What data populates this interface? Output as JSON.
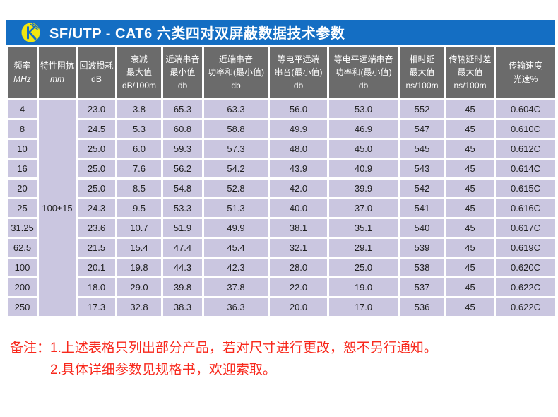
{
  "header": {
    "title": "SF/UTP - CAT6 六类四对双屏蔽数据技术参数",
    "logo_icon": "brand-logo"
  },
  "colors": {
    "titlebar_blue": "#146ec3",
    "logo_yellow": "#f0e611",
    "header_gray": "#6b6b6b",
    "row_lavender": "#cac6e0",
    "grid_white": "#ffffff",
    "note_red": "#f8281c"
  },
  "table": {
    "columns": [
      {
        "l1": "频率",
        "l2": "MHz"
      },
      {
        "l1": "特性阻抗",
        "l2": "mm"
      },
      {
        "l1": "回波损耗",
        "l2": "dB"
      },
      {
        "l1": "衰减",
        "l2": "最大值",
        "l3": "dB/100m"
      },
      {
        "l1": "近端串音",
        "l2": "最小值",
        "l3": "db"
      },
      {
        "l1": "近端串音",
        "l2": "功率和(最小值)",
        "l3": "db"
      },
      {
        "l1": "等电平远端",
        "l2": "串音(最小值)",
        "l3": "db"
      },
      {
        "l1": "等电平远端串音",
        "l2": "功率和(最小值)",
        "l3": "db"
      },
      {
        "l1": "相时延",
        "l2": "最大值",
        "l3": "ns/100m"
      },
      {
        "l1": "传输延时差",
        "l2": "最大值",
        "l3": "ns/100m"
      },
      {
        "l1": "传输速度",
        "l2": "光速%"
      }
    ],
    "impedance": "100±15",
    "rows": [
      {
        "freq": "4",
        "values": [
          "23.0",
          "3.8",
          "65.3",
          "63.3",
          "56.0",
          "53.0",
          "552",
          "45",
          "0.604C"
        ]
      },
      {
        "freq": "8",
        "values": [
          "24.5",
          "5.3",
          "60.8",
          "58.8",
          "49.9",
          "46.9",
          "547",
          "45",
          "0.610C"
        ]
      },
      {
        "freq": "10",
        "values": [
          "25.0",
          "6.0",
          "59.3",
          "57.3",
          "48.0",
          "45.0",
          "545",
          "45",
          "0.612C"
        ]
      },
      {
        "freq": "16",
        "values": [
          "25.0",
          "7.6",
          "56.2",
          "54.2",
          "43.9",
          "40.9",
          "543",
          "45",
          "0.614C"
        ]
      },
      {
        "freq": "20",
        "values": [
          "25.0",
          "8.5",
          "54.8",
          "52.8",
          "42.0",
          "39.9",
          "542",
          "45",
          "0.615C"
        ]
      },
      {
        "freq": "25",
        "values": [
          "24.3",
          "9.5",
          "53.3",
          "51.3",
          "40.0",
          "37.0",
          "541",
          "45",
          "0.616C"
        ]
      },
      {
        "freq": "31.25",
        "values": [
          "23.6",
          "10.7",
          "51.9",
          "49.9",
          "38.1",
          "35.1",
          "540",
          "45",
          "0.617C"
        ]
      },
      {
        "freq": "62.5",
        "values": [
          "21.5",
          "15.4",
          "47.4",
          "45.4",
          "32.1",
          "29.1",
          "539",
          "45",
          "0.619C"
        ]
      },
      {
        "freq": "100",
        "values": [
          "20.1",
          "19.8",
          "44.3",
          "42.3",
          "28.0",
          "25.0",
          "538",
          "45",
          "0.620C"
        ]
      },
      {
        "freq": "200",
        "values": [
          "18.0",
          "29.0",
          "39.8",
          "37.8",
          "22.0",
          "19.0",
          "537",
          "45",
          "0.622C"
        ]
      },
      {
        "freq": "250",
        "values": [
          "17.3",
          "32.8",
          "38.3",
          "36.3",
          "20.0",
          "17.0",
          "536",
          "45",
          "0.622C"
        ]
      }
    ]
  },
  "notes": {
    "label": "备注：",
    "lines": [
      "1.上述表格只列出部分产品，若对尺寸进行更改，恕不另行通知。",
      "2.具体详细参数见规格书，欢迎索取。"
    ]
  }
}
